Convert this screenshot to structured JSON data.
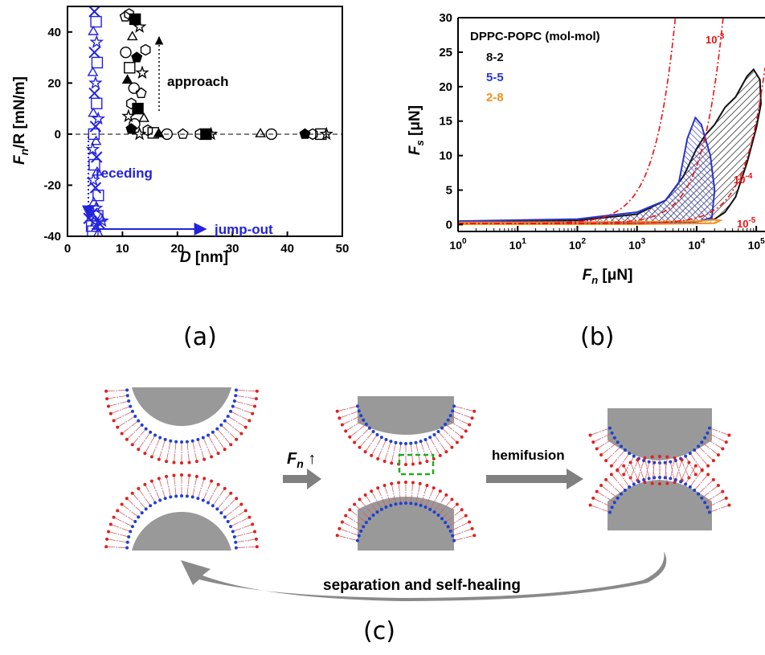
{
  "panels": {
    "a": "(a)",
    "b": "(b)",
    "c": "(c)"
  },
  "chart_data": [
    {
      "type": "scatter",
      "panel": "a",
      "xlabel_main": "D",
      "xlabel_unit": " [nm]",
      "ylabel_main": "F",
      "ylabel_sub": "n",
      "ylabel_rest": "/R [mN/m]",
      "xlim": [
        0,
        50
      ],
      "ylim": [
        -40,
        50
      ],
      "xticks": [
        0,
        10,
        20,
        30,
        40,
        50
      ],
      "yticks": [
        -40,
        -20,
        0,
        20,
        40
      ],
      "annotations": {
        "approach": "approach",
        "receding": "receding",
        "jump_out": "jump-out"
      },
      "series": [
        {
          "marker_group": "approach",
          "color": "#000000",
          "points": [
            [
              10.5,
              46
            ],
            [
              11.2,
              47
            ],
            [
              12.3,
              45
            ],
            [
              13.1,
              42
            ],
            [
              11.8,
              38
            ],
            [
              10.6,
              32
            ],
            [
              12.6,
              30
            ],
            [
              14.2,
              33
            ],
            [
              11.3,
              26
            ],
            [
              13.6,
              24
            ],
            [
              10.9,
              21
            ],
            [
              12.1,
              18
            ],
            [
              13.4,
              16
            ],
            [
              11.6,
              12
            ],
            [
              12.8,
              10
            ],
            [
              11.1,
              7
            ],
            [
              13.9,
              6
            ],
            [
              12.2,
              4
            ],
            [
              11.6,
              2
            ],
            [
              14.6,
              1.5
            ],
            [
              15.6,
              0.5
            ],
            [
              13.1,
              0
            ],
            [
              16.6,
              0
            ],
            [
              18.1,
              0
            ],
            [
              21,
              0
            ],
            [
              24.1,
              0
            ],
            [
              25.2,
              0
            ],
            [
              26.1,
              0
            ],
            [
              35.1,
              0
            ],
            [
              37.1,
              0
            ],
            [
              43.2,
              0
            ],
            [
              44.6,
              0
            ],
            [
              46.1,
              0
            ],
            [
              47.1,
              0
            ]
          ]
        },
        {
          "marker_group": "receding",
          "color": "#2222dd",
          "points": [
            [
              4.9,
              48
            ],
            [
              5.2,
              44
            ],
            [
              4.7,
              40
            ],
            [
              5.3,
              36
            ],
            [
              4.9,
              32
            ],
            [
              5.4,
              28
            ],
            [
              4.6,
              24
            ],
            [
              5.1,
              20
            ],
            [
              4.9,
              16
            ],
            [
              5.3,
              12
            ],
            [
              4.7,
              8
            ],
            [
              5.6,
              6
            ],
            [
              5.1,
              3
            ],
            [
              4.8,
              0
            ],
            [
              5.2,
              -3
            ],
            [
              4.6,
              -6
            ],
            [
              5.3,
              -9
            ],
            [
              4.9,
              -12
            ],
            [
              5.4,
              -15
            ],
            [
              4.7,
              -18
            ],
            [
              5.1,
              -21
            ],
            [
              5.6,
              -24
            ],
            [
              4.8,
              -27
            ],
            [
              5.2,
              -29
            ],
            [
              4.5,
              -31
            ],
            [
              5.5,
              -32
            ],
            [
              6.1,
              -33
            ],
            [
              4.9,
              -34
            ],
            [
              5.8,
              -35
            ],
            [
              4.4,
              -36
            ],
            [
              5.2,
              -37
            ],
            [
              6.3,
              -34
            ],
            [
              3.9,
              -33
            ],
            [
              4.6,
              -38
            ],
            [
              5.6,
              -39
            ]
          ]
        }
      ]
    },
    {
      "type": "area",
      "panel": "b",
      "xlabel_main": "F",
      "xlabel_sub": "n",
      "xlabel_unit": " [μN]",
      "ylabel_main": "F",
      "ylabel_sub": "s",
      "ylabel_unit": " [μN]",
      "xscale": "log",
      "xlim": [
        1,
        140000
      ],
      "ylim": [
        -1,
        30
      ],
      "xticks": [
        {
          "v": 1,
          "base": "10",
          "exp": "0"
        },
        {
          "v": 10,
          "base": "10",
          "exp": "1"
        },
        {
          "v": 100,
          "base": "10",
          "exp": "2"
        },
        {
          "v": 1000,
          "base": "10",
          "exp": "3"
        },
        {
          "v": 10000,
          "base": "10",
          "exp": "4"
        },
        {
          "v": 100000,
          "base": "10",
          "exp": "5"
        }
      ],
      "yticks": [
        0,
        5,
        10,
        15,
        20,
        25,
        30
      ],
      "legend_title": "DPPC-POPC (mol-mol)",
      "legend_placement": "top-left",
      "series": [
        {
          "name": "8-2",
          "color": "#111111",
          "polygon": [
            [
              1,
              0.4
            ],
            [
              100,
              0.6
            ],
            [
              1000,
              1.5
            ],
            [
              3000,
              3.5
            ],
            [
              6000,
              7
            ],
            [
              10000,
              11
            ],
            [
              14000,
              13
            ],
            [
              20000,
              14.5
            ],
            [
              30000,
              17
            ],
            [
              45000,
              18.5
            ],
            [
              70000,
              21.5
            ],
            [
              90000,
              22.5
            ],
            [
              115000,
              21
            ],
            [
              120000,
              17.5
            ],
            [
              100000,
              14
            ],
            [
              70000,
              9
            ],
            [
              45000,
              4
            ],
            [
              30000,
              1.8
            ],
            [
              20000,
              0.8
            ],
            [
              8000,
              0.3
            ],
            [
              1000,
              0.15
            ],
            [
              100,
              0.1
            ],
            [
              1,
              0.1
            ]
          ]
        },
        {
          "name": "5-5",
          "color": "#2a35cc",
          "polygon": [
            [
              1,
              0.5
            ],
            [
              100,
              0.8
            ],
            [
              1000,
              1.8
            ],
            [
              3000,
              3.5
            ],
            [
              5000,
              6
            ],
            [
              7000,
              12.5
            ],
            [
              9500,
              15.5
            ],
            [
              12000,
              14.5
            ],
            [
              17000,
              10
            ],
            [
              20000,
              5
            ],
            [
              18000,
              1
            ],
            [
              10000,
              0.4
            ],
            [
              1000,
              0.2
            ],
            [
              100,
              0.15
            ],
            [
              1,
              0.15
            ]
          ]
        },
        {
          "name": "2-8",
          "color": "#f59020",
          "polygon": [
            [
              1,
              0.3
            ],
            [
              100,
              0.35
            ],
            [
              1000,
              0.4
            ],
            [
              10000,
              0.5
            ],
            [
              20000,
              0.7
            ],
            [
              25000,
              0.6
            ],
            [
              20000,
              0.2
            ],
            [
              1000,
              0.05
            ],
            [
              1,
              0.05
            ]
          ]
        }
      ],
      "reference_lines": [
        {
          "label_base": "10",
          "label_exp": "-3",
          "color": "#ee1111",
          "coef": 0.001
        },
        {
          "label_base": "10",
          "label_exp": "-4",
          "color": "#ee1111",
          "coef": 0.0001
        },
        {
          "label_base": "10",
          "label_exp": "-5",
          "color": "#ee1111",
          "coef": 1e-05
        }
      ]
    },
    {
      "type": "diagram",
      "panel": "c",
      "force_main": "F",
      "force_sub": "n",
      "force_arrow": " ↑",
      "hemifusion": "hemifusion",
      "separation": "separation and self-healing"
    }
  ]
}
